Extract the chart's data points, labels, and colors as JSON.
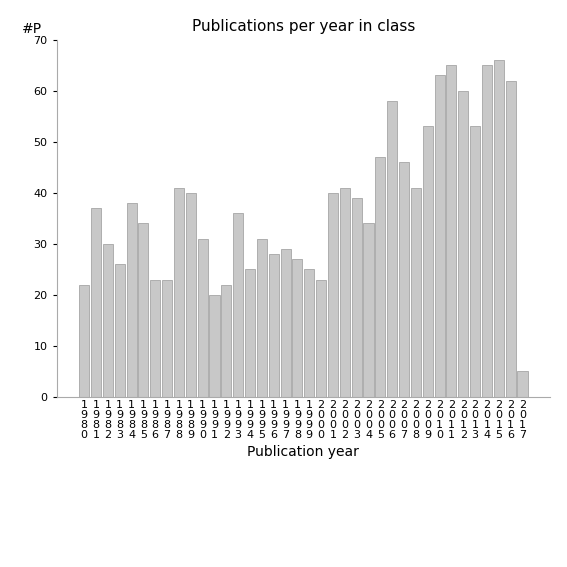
{
  "title": "Publications per year in class",
  "xlabel": "Publication year",
  "ylabel": "#P",
  "years": [
    "1980",
    "1981",
    "1982",
    "1983",
    "1984",
    "1985",
    "1986",
    "1987",
    "1988",
    "1989",
    "1990",
    "1991",
    "1992",
    "1993",
    "1994",
    "1995",
    "1996",
    "1997",
    "1998",
    "1999",
    "2000",
    "2001",
    "2002",
    "2003",
    "2004",
    "2005",
    "2006",
    "2007",
    "2008",
    "2009",
    "2010",
    "2011",
    "2012",
    "2013",
    "2014",
    "2015",
    "2016",
    "2017"
  ],
  "values": [
    22,
    37,
    30,
    26,
    38,
    34,
    23,
    23,
    41,
    40,
    31,
    20,
    22,
    36,
    25,
    31,
    28,
    29,
    27,
    25,
    23,
    40,
    41,
    39,
    34,
    47,
    58,
    46,
    41,
    53,
    63,
    65,
    60,
    53,
    65,
    66,
    62,
    5
  ],
  "bar_color": "#c8c8c8",
  "bar_edgecolor": "#999999",
  "ylim": [
    0,
    70
  ],
  "yticks": [
    0,
    10,
    20,
    30,
    40,
    50,
    60,
    70
  ],
  "bg_color": "#ffffff",
  "title_fontsize": 11,
  "axis_label_fontsize": 10,
  "tick_fontsize": 8
}
